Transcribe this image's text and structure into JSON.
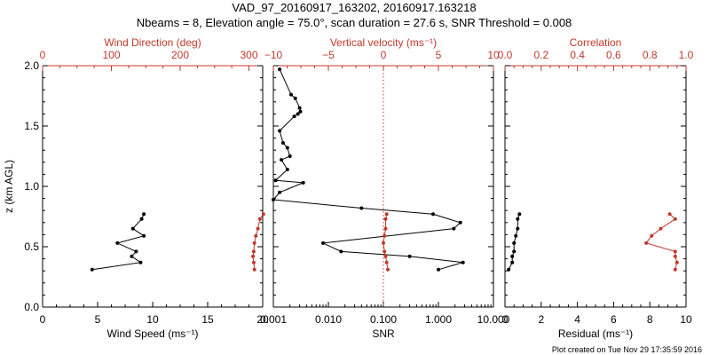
{
  "title_line1": "VAD_97_20160917_163202, 20160917.163218",
  "title_line2": "Nbeams = 8, Elevation angle = 75.0°, scan duration = 27.6 s, SNR Threshold = 0.008",
  "footer": "Plot created on Tue Nov 29 17:35:59 2016",
  "colors": {
    "primary": "#000000",
    "secondary": "#c0392b"
  },
  "chart_data": [
    {
      "type": "line",
      "top_axis_label": "Wind Direction (deg)",
      "bottom_axis_label": "Wind Speed (ms⁻¹)",
      "ylabel": "z (km AGL)",
      "ylim": [
        0.0,
        2.0
      ],
      "yticks": [
        "0.0",
        "0.5",
        "1.0",
        "1.5",
        "2.0"
      ],
      "top_xlim": [
        0,
        320
      ],
      "top_ticks": [
        "0",
        "100",
        "200",
        "300"
      ],
      "bottom_xlim": [
        0,
        20
      ],
      "bottom_ticks": [
        "0",
        "5",
        "10",
        "15",
        "20"
      ],
      "series": [
        {
          "axis": "bottom",
          "color": "#000000",
          "x": [
            9.2,
            9.0,
            8.2,
            9.2,
            6.8,
            8.5,
            8.1,
            8.9,
            4.5
          ],
          "y": [
            0.77,
            0.73,
            0.65,
            0.59,
            0.53,
            0.46,
            0.42,
            0.37,
            0.31
          ]
        },
        {
          "axis": "top",
          "color": "#c0392b",
          "x": [
            321,
            316,
            313,
            310,
            308,
            307,
            306,
            307,
            308
          ],
          "y": [
            0.77,
            0.73,
            0.65,
            0.59,
            0.53,
            0.46,
            0.42,
            0.37,
            0.31
          ]
        }
      ]
    },
    {
      "type": "line",
      "top_axis_label": "Vertical velocity (ms⁻¹)",
      "bottom_axis_label": "SNR",
      "ylim": [
        0.0,
        2.0
      ],
      "top_xlim": [
        -10,
        10
      ],
      "top_ticks": [
        "−10",
        "−5",
        "0",
        "5",
        "10"
      ],
      "bottom_scale": "log",
      "bottom_xlim": [
        0.001,
        10.0
      ],
      "bottom_ticks": [
        "0.001",
        "0.010",
        "0.100",
        "1.000",
        "10.000"
      ],
      "series": [
        {
          "axis": "bottom",
          "color": "#000000",
          "x": [
            0.0013,
            0.0021,
            0.0025,
            0.003,
            0.0031,
            0.0028,
            0.0024,
            0.0013,
            0.0015,
            0.0018,
            0.002,
            0.0014,
            0.0018,
            0.0011,
            0.0035,
            0.0013,
            0.001,
            0.04,
            0.8,
            2.5,
            1.9,
            0.008,
            0.017,
            0.3,
            2.8,
            1.0
          ],
          "y": [
            1.97,
            1.76,
            1.73,
            1.65,
            1.62,
            1.6,
            1.58,
            1.46,
            1.36,
            1.32,
            1.25,
            1.22,
            1.14,
            1.05,
            1.03,
            0.95,
            0.89,
            0.82,
            0.77,
            0.7,
            0.65,
            0.53,
            0.46,
            0.42,
            0.37,
            0.31
          ]
        },
        {
          "axis": "top",
          "color": "#c0392b",
          "x": [
            0.3,
            0.2,
            0.2,
            0.1,
            0.0,
            0.1,
            0.2,
            0.3,
            0.4
          ],
          "y": [
            0.77,
            0.73,
            0.65,
            0.59,
            0.53,
            0.46,
            0.42,
            0.37,
            0.31
          ]
        }
      ],
      "annotation": {
        "type": "vline",
        "axis": "top",
        "x": 0,
        "style": "dotted",
        "color": "#c0392b"
      }
    },
    {
      "type": "line",
      "top_axis_label": "Correlation",
      "bottom_axis_label": "Residual (ms⁻¹)",
      "ylim": [
        0.0,
        2.0
      ],
      "top_xlim": [
        0.0,
        1.0
      ],
      "top_ticks": [
        "0.0",
        "0.2",
        "0.4",
        "0.6",
        "0.8",
        "1.0"
      ],
      "bottom_xlim": [
        0,
        10
      ],
      "bottom_ticks": [
        "0",
        "2",
        "4",
        "6",
        "8",
        "10"
      ],
      "series": [
        {
          "axis": "bottom",
          "color": "#000000",
          "x": [
            0.8,
            0.7,
            0.7,
            0.6,
            0.5,
            0.5,
            0.4,
            0.4,
            0.2
          ],
          "y": [
            0.77,
            0.73,
            0.65,
            0.59,
            0.53,
            0.46,
            0.42,
            0.37,
            0.31
          ]
        },
        {
          "axis": "top",
          "color": "#c0392b",
          "x": [
            0.91,
            0.94,
            0.86,
            0.81,
            0.78,
            0.94,
            0.94,
            0.95,
            0.94
          ],
          "y": [
            0.77,
            0.73,
            0.65,
            0.59,
            0.53,
            0.46,
            0.42,
            0.37,
            0.31
          ]
        }
      ]
    }
  ]
}
